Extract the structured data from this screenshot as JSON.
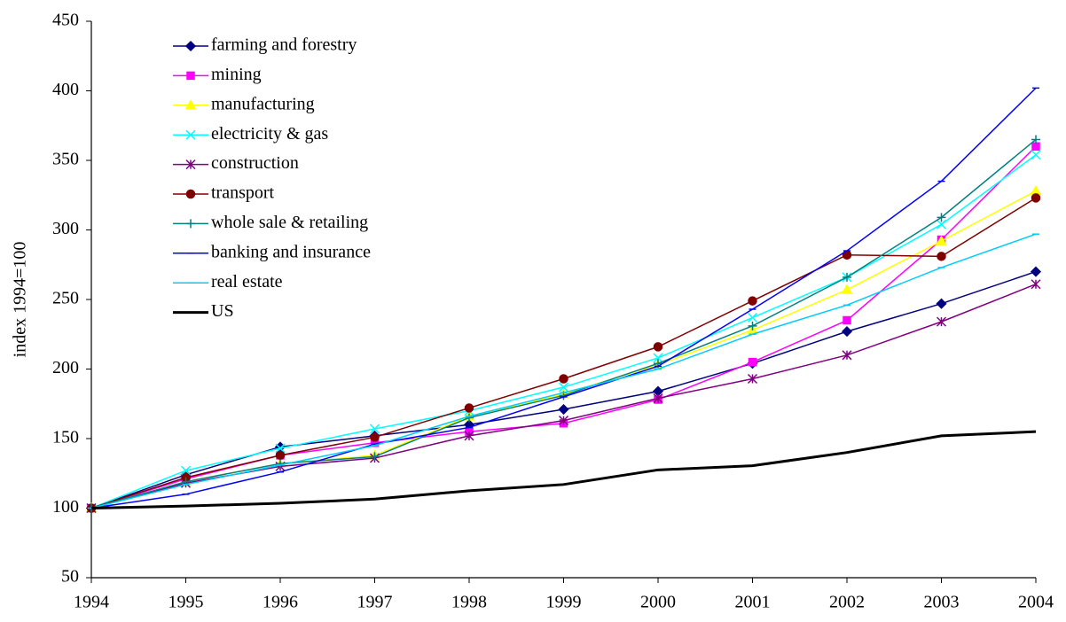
{
  "chart_data": {
    "type": "line",
    "y_label": "index 1994=100",
    "x": [
      1994,
      1995,
      1996,
      1997,
      1998,
      1999,
      2000,
      2001,
      2002,
      2003,
      2004
    ],
    "xlim": [
      1994,
      2004
    ],
    "xticks": [
      1994,
      1995,
      1996,
      1997,
      1998,
      1999,
      2000,
      2001,
      2002,
      2003,
      2004
    ],
    "ylim": [
      50,
      450
    ],
    "yticks": [
      50,
      100,
      150,
      200,
      250,
      300,
      350,
      400,
      450
    ],
    "legend": "top-left",
    "series": [
      {
        "name": "farming and forestry",
        "color": "#000080",
        "marker": "diamond",
        "values": [
          100,
          124,
          144,
          152,
          160,
          171,
          184,
          204,
          227,
          247,
          270
        ]
      },
      {
        "name": "mining",
        "color": "#ff00ff",
        "marker": "square",
        "values": [
          100,
          121,
          138,
          147,
          155,
          161,
          178,
          205,
          235,
          293,
          360
        ]
      },
      {
        "name": "manufacturing",
        "color": "#ffff00",
        "marker": "triangle",
        "values": [
          100,
          119,
          132,
          138,
          166,
          182,
          203,
          228,
          257,
          292,
          328
        ]
      },
      {
        "name": "electricity & gas",
        "color": "#00ffff",
        "marker": "x",
        "values": [
          100,
          127,
          143,
          157,
          170,
          187,
          208,
          237,
          266,
          304,
          354
        ]
      },
      {
        "name": "construction",
        "color": "#800080",
        "marker": "star",
        "values": [
          100,
          118,
          130,
          136,
          152,
          163,
          179,
          193,
          210,
          234,
          261
        ]
      },
      {
        "name": "transport",
        "color": "#800000",
        "marker": "circle",
        "values": [
          100,
          122,
          138,
          151,
          172,
          193,
          216,
          249,
          282,
          281,
          323
        ]
      },
      {
        "name": "whole sale & retailing",
        "color": "#008080",
        "marker": "plus",
        "values": [
          100,
          119,
          132,
          137,
          165,
          181,
          204,
          231,
          266,
          309,
          365
        ]
      },
      {
        "name": "banking and insurance",
        "color": "#0000ff",
        "marker": "dash",
        "values": [
          100,
          110,
          126,
          146,
          158,
          180,
          202,
          243,
          285,
          335,
          402
        ]
      },
      {
        "name": "real estate",
        "color": "#00ccff",
        "marker": "dash",
        "values": [
          100,
          117,
          131,
          145,
          166,
          183,
          200,
          225,
          246,
          273,
          297
        ]
      },
      {
        "name": "US",
        "color": "#000000",
        "marker": "none",
        "width": 3,
        "values": [
          100,
          101.5,
          103.5,
          106.5,
          112.5,
          117,
          127.5,
          130.5,
          140,
          152,
          155
        ]
      }
    ]
  }
}
